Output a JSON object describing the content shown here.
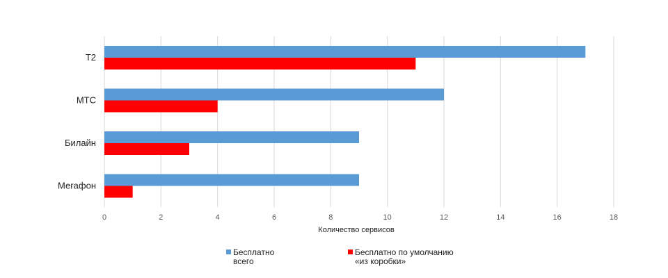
{
  "chart_data": {
    "type": "bar",
    "orientation": "horizontal",
    "categories": [
      "T2",
      "МТС",
      "Билайн",
      "Мегафон"
    ],
    "series": [
      {
        "name": "Бесплатно всего",
        "name_lines": [
          "Бесплатно",
          "всего"
        ],
        "color": "#5b9bd5",
        "values": [
          17,
          12,
          9,
          9
        ]
      },
      {
        "name": "Бесплатно по умолчанию «из коробки»",
        "name_lines": [
          "Бесплатно  по умолчанию",
          "«из коробки»"
        ],
        "color": "#ff0000",
        "values": [
          11,
          4,
          3,
          1
        ]
      }
    ],
    "xlabel": "Количество  сервисов",
    "xlim": [
      0,
      18
    ],
    "xticks": [
      0,
      2,
      4,
      6,
      8,
      10,
      12,
      14,
      16,
      18
    ],
    "grid": true,
    "legend": "bottom"
  }
}
